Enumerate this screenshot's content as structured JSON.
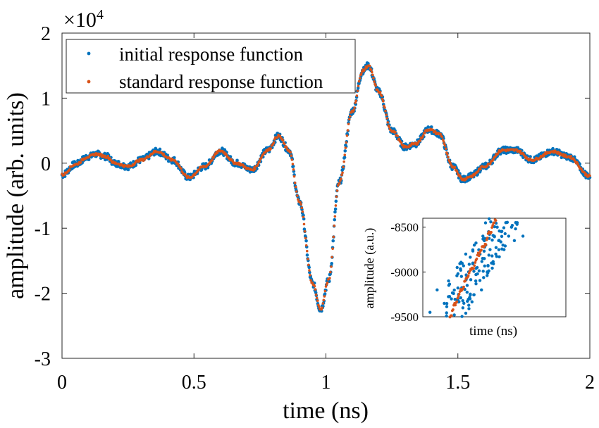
{
  "chart_data": [
    {
      "type": "scatter",
      "xlabel": "time (ns)",
      "ylabel": "amplitude (arb. units)",
      "exponent_label": "×10",
      "exponent_power": "4",
      "xlim": [
        0,
        2
      ],
      "ylim": [
        -3,
        2
      ],
      "xticks": [
        0,
        0.5,
        1,
        1.5,
        2
      ],
      "xtick_labels": [
        "0",
        "0.5",
        "1",
        "1.5",
        "2"
      ],
      "yticks": [
        -3,
        -2,
        -1,
        0,
        1,
        2
      ],
      "ytick_labels": [
        "-3",
        "-2",
        "-1",
        "0",
        "1",
        "2"
      ],
      "grid": false,
      "legend_position": "top-left",
      "series": [
        {
          "name": "initial response function",
          "color": "#0072BD",
          "x": [
            0,
            0.05,
            0.1,
            0.13,
            0.17,
            0.2,
            0.25,
            0.3,
            0.36,
            0.42,
            0.48,
            0.54,
            0.6,
            0.66,
            0.72,
            0.78,
            0.82,
            0.86,
            0.9,
            0.95,
            0.98,
            1.01,
            1.05,
            1.1,
            1.14,
            1.16,
            1.2,
            1.25,
            1.3,
            1.34,
            1.39,
            1.43,
            1.48,
            1.52,
            1.55,
            1.6,
            1.67,
            1.72,
            1.78,
            1.86,
            1.92,
            2.0
          ],
          "y": [
            -0.18,
            -0.02,
            0.1,
            0.14,
            0.1,
            0.0,
            -0.05,
            0.05,
            0.18,
            0.05,
            -0.22,
            -0.05,
            0.19,
            0.0,
            -0.1,
            0.2,
            0.42,
            0.2,
            -0.6,
            -1.85,
            -2.25,
            -1.8,
            -0.3,
            0.8,
            1.42,
            1.5,
            1.1,
            0.5,
            0.25,
            0.3,
            0.52,
            0.45,
            -0.05,
            -0.25,
            -0.2,
            -0.05,
            0.2,
            0.2,
            0.05,
            0.18,
            0.1,
            -0.2
          ]
        },
        {
          "name": "standard response function",
          "color": "#D95319",
          "x": [
            0,
            0.05,
            0.1,
            0.13,
            0.17,
            0.2,
            0.25,
            0.3,
            0.36,
            0.42,
            0.48,
            0.54,
            0.6,
            0.66,
            0.72,
            0.78,
            0.82,
            0.86,
            0.9,
            0.95,
            0.98,
            1.01,
            1.05,
            1.1,
            1.14,
            1.16,
            1.2,
            1.25,
            1.3,
            1.34,
            1.39,
            1.43,
            1.48,
            1.52,
            1.55,
            1.6,
            1.67,
            1.72,
            1.78,
            1.86,
            1.92,
            2.0
          ],
          "y": [
            -0.18,
            -0.02,
            0.1,
            0.14,
            0.1,
            0.0,
            -0.05,
            0.05,
            0.18,
            0.05,
            -0.22,
            -0.05,
            0.19,
            0.0,
            -0.1,
            0.2,
            0.42,
            0.2,
            -0.6,
            -1.85,
            -2.25,
            -1.8,
            -0.3,
            0.8,
            1.42,
            1.5,
            1.1,
            0.5,
            0.25,
            0.3,
            0.52,
            0.45,
            -0.05,
            -0.25,
            -0.2,
            -0.05,
            0.2,
            0.2,
            0.05,
            0.18,
            0.1,
            -0.2
          ]
        }
      ]
    },
    {
      "type": "scatter",
      "inset": true,
      "xlabel": "time (ns)",
      "ylabel": "amplitude (a.u.)",
      "ylim": [
        -9500,
        -8400
      ],
      "yticks": [
        -9500,
        -9000,
        -8500
      ],
      "ytick_labels": [
        "-9500",
        "-9000",
        "-8500"
      ],
      "series": [
        {
          "name": "initial response function",
          "color": "#0072BD",
          "x_fraction": [
            0.05,
            0.1,
            0.15,
            0.18,
            0.2,
            0.22,
            0.24,
            0.25,
            0.27,
            0.28,
            0.3,
            0.31,
            0.32,
            0.33,
            0.35,
            0.36,
            0.37,
            0.38,
            0.4,
            0.41,
            0.42,
            0.43,
            0.44,
            0.45,
            0.46,
            0.47,
            0.48,
            0.5,
            0.51,
            0.52,
            0.53,
            0.55,
            0.56,
            0.58,
            0.6,
            0.62,
            0.64,
            0.66,
            0.7
          ],
          "y": [
            -9450,
            -9200,
            -9350,
            -9100,
            -9300,
            -9480,
            -8950,
            -9250,
            -9050,
            -9400,
            -8800,
            -9150,
            -9000,
            -9300,
            -8900,
            -8700,
            -9100,
            -8950,
            -8800,
            -9200,
            -8600,
            -8850,
            -8700,
            -9000,
            -8550,
            -8750,
            -8900,
            -8600,
            -8800,
            -8500,
            -8650,
            -8550,
            -8700,
            -8450,
            -8600,
            -8500,
            -8650,
            -8450,
            -8600
          ]
        },
        {
          "name": "standard response function",
          "color": "#D95319",
          "x_fraction": [
            0.19,
            0.23,
            0.27,
            0.31,
            0.35,
            0.39,
            0.43,
            0.47,
            0.51
          ],
          "y": [
            -9500,
            -9350,
            -9200,
            -9050,
            -8950,
            -8800,
            -8700,
            -8550,
            -8420
          ]
        }
      ]
    }
  ]
}
